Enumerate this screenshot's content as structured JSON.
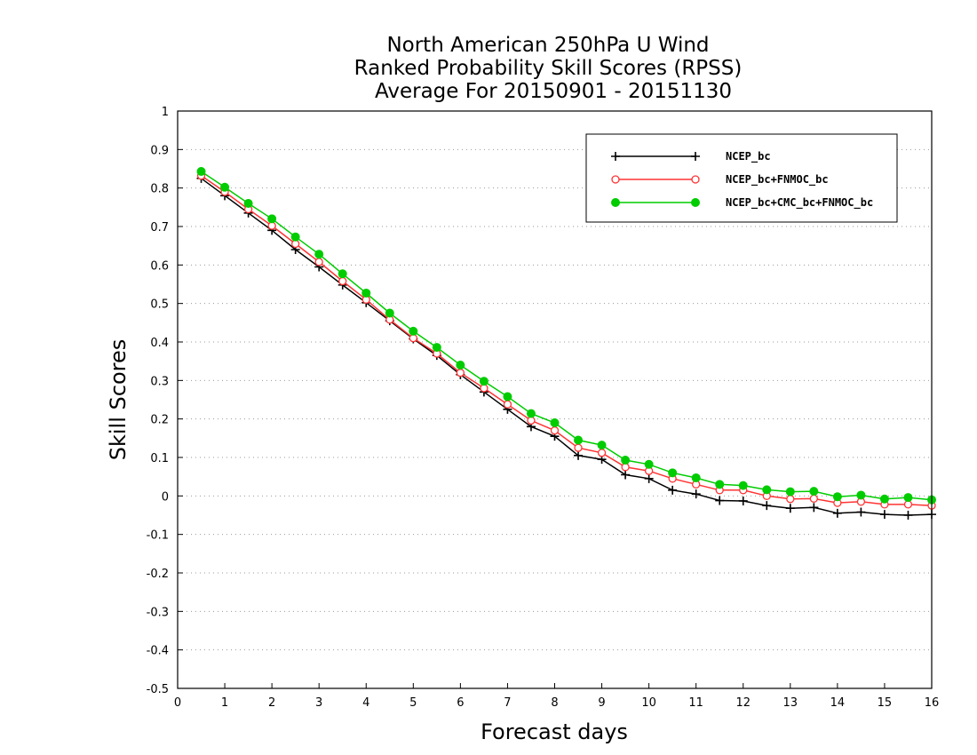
{
  "chart_data": {
    "type": "line",
    "title_lines": [
      "North American 250hPa U Wind",
      "Ranked Probability Skill Scores (RPSS)",
      "Average For 20150901 - 20151130"
    ],
    "xlabel": "Forecast days",
    "ylabel": "Skill Scores",
    "xlim": [
      0,
      16
    ],
    "ylim": [
      -0.5,
      1
    ],
    "xticks": [
      0,
      1,
      2,
      3,
      4,
      5,
      6,
      7,
      8,
      9,
      10,
      11,
      12,
      13,
      14,
      15,
      16
    ],
    "yticks": [
      -0.5,
      -0.4,
      -0.3,
      -0.2,
      -0.1,
      0,
      0.1,
      0.2,
      0.3,
      0.4,
      0.5,
      0.6,
      0.7,
      0.8,
      0.9,
      1
    ],
    "ytick_labels": [
      "-0.5",
      "-0.4",
      "-0.3",
      "-0.2",
      "-0.1",
      "0",
      "0.1",
      "0.2",
      "0.3",
      "0.4",
      "0.5",
      "0.6",
      "0.7",
      "0.8",
      "0.9",
      "1"
    ],
    "grid": "horizontal dotted",
    "legend_position": "top-right",
    "x": [
      0.5,
      1,
      1.5,
      2,
      2.5,
      3,
      3.5,
      4,
      4.5,
      5,
      5.5,
      6,
      6.5,
      7,
      7.5,
      8,
      8.5,
      9,
      9.5,
      10,
      10.5,
      11,
      11.5,
      12,
      12.5,
      13,
      13.5,
      14,
      14.5,
      15,
      15.5,
      16
    ],
    "series": [
      {
        "name": "NCEP_bc",
        "color": "#000000",
        "marker": "plus",
        "values": [
          0.825,
          0.78,
          0.735,
          0.69,
          0.64,
          0.595,
          0.548,
          0.502,
          0.455,
          0.408,
          0.365,
          0.315,
          0.27,
          0.225,
          0.18,
          0.155,
          0.105,
          0.095,
          0.055,
          0.045,
          0.015,
          0.005,
          -0.012,
          -0.013,
          -0.025,
          -0.032,
          -0.03,
          -0.045,
          -0.042,
          -0.048,
          -0.05,
          -0.048
        ]
      },
      {
        "name": "NCEP_bc+FNMOC_bc",
        "color": "#ff3333",
        "marker": "open-circle",
        "values": [
          0.832,
          0.79,
          0.745,
          0.702,
          0.655,
          0.608,
          0.558,
          0.51,
          0.458,
          0.41,
          0.37,
          0.32,
          0.28,
          0.238,
          0.196,
          0.17,
          0.125,
          0.112,
          0.075,
          0.065,
          0.045,
          0.03,
          0.015,
          0.015,
          0.0,
          -0.008,
          -0.007,
          -0.018,
          -0.015,
          -0.022,
          -0.022,
          -0.025
        ]
      },
      {
        "name": "NCEP_bc+CMC_bc+FNMOC_bc",
        "color": "#00cc00",
        "marker": "filled-circle",
        "values": [
          0.843,
          0.802,
          0.76,
          0.72,
          0.673,
          0.628,
          0.577,
          0.527,
          0.475,
          0.428,
          0.386,
          0.34,
          0.298,
          0.258,
          0.214,
          0.19,
          0.145,
          0.132,
          0.093,
          0.082,
          0.06,
          0.047,
          0.03,
          0.027,
          0.016,
          0.011,
          0.012,
          -0.002,
          0.002,
          -0.008,
          -0.004,
          -0.01
        ]
      }
    ]
  }
}
